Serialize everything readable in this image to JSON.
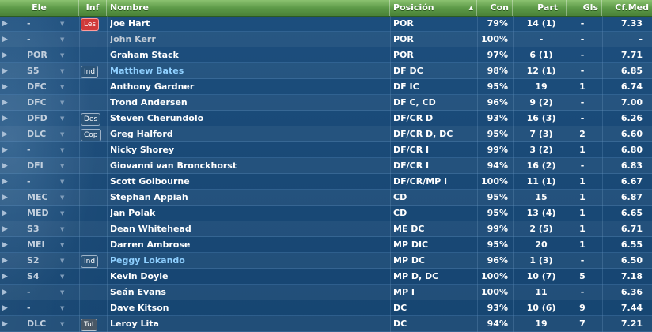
{
  "header": {
    "ele": "Ele",
    "inf": "Inf",
    "nombre": "Nombre",
    "posicion": "Posición",
    "con": "Con",
    "part": "Part",
    "gls": "Gls",
    "cfmed": "Cf.Med"
  },
  "rows": [
    {
      "ele": "-",
      "inf": "Les",
      "name": "Joe Hart",
      "pos": "POR",
      "con": "79%",
      "part": "14 (1)",
      "gls": "-",
      "cfmed": "7.33"
    },
    {
      "ele": "-",
      "inf": "",
      "name": "John Kerr",
      "pos": "POR",
      "con": "100%",
      "part": "-",
      "gls": "-",
      "cfmed": "-"
    },
    {
      "ele": "POR",
      "inf": "",
      "name": "Graham Stack",
      "pos": "POR",
      "con": "97%",
      "part": "6 (1)",
      "gls": "-",
      "cfmed": "7.71"
    },
    {
      "ele": "S5",
      "inf": "Ind",
      "name": "Matthew Bates",
      "pos": "DF DC",
      "con": "98%",
      "part": "12 (1)",
      "gls": "-",
      "cfmed": "6.85"
    },
    {
      "ele": "DFC",
      "inf": "",
      "name": "Anthony Gardner",
      "pos": "DF IC",
      "con": "95%",
      "part": "19",
      "gls": "1",
      "cfmed": "6.74"
    },
    {
      "ele": "DFC",
      "inf": "",
      "name": "Trond Andersen",
      "pos": "DF C, CD",
      "con": "96%",
      "part": "9 (2)",
      "gls": "-",
      "cfmed": "7.00"
    },
    {
      "ele": "DFD",
      "inf": "Des",
      "name": "Steven Cherundolo",
      "pos": "DF/CR D",
      "con": "93%",
      "part": "16 (3)",
      "gls": "-",
      "cfmed": "6.26"
    },
    {
      "ele": "DLC",
      "inf": "Cop",
      "name": "Greg Halford",
      "pos": "DF/CR D, DC",
      "con": "95%",
      "part": "7 (3)",
      "gls": "2",
      "cfmed": "6.60"
    },
    {
      "ele": "-",
      "inf": "",
      "name": "Nicky Shorey",
      "pos": "DF/CR I",
      "con": "99%",
      "part": "3 (2)",
      "gls": "1",
      "cfmed": "6.80"
    },
    {
      "ele": "DFI",
      "inf": "",
      "name": "Giovanni van Bronckhorst",
      "pos": "DF/CR I",
      "con": "94%",
      "part": "16 (2)",
      "gls": "-",
      "cfmed": "6.83"
    },
    {
      "ele": "-",
      "inf": "",
      "name": "Scott Golbourne",
      "pos": "DF/CR/MP I",
      "con": "100%",
      "part": "11 (1)",
      "gls": "1",
      "cfmed": "6.67"
    },
    {
      "ele": "MEC",
      "inf": "",
      "name": "Stephan Appiah",
      "pos": "CD",
      "con": "95%",
      "part": "15",
      "gls": "1",
      "cfmed": "6.87"
    },
    {
      "ele": "MED",
      "inf": "",
      "name": "Jan Polak",
      "pos": "CD",
      "con": "95%",
      "part": "13 (4)",
      "gls": "1",
      "cfmed": "6.65"
    },
    {
      "ele": "S3",
      "inf": "",
      "name": "Dean Whitehead",
      "pos": "ME DC",
      "con": "99%",
      "part": "2 (5)",
      "gls": "1",
      "cfmed": "6.71"
    },
    {
      "ele": "MEI",
      "inf": "",
      "name": "Darren Ambrose",
      "pos": "MP DIC",
      "con": "95%",
      "part": "20",
      "gls": "1",
      "cfmed": "6.55"
    },
    {
      "ele": "S2",
      "inf": "Ind",
      "name": "Peggy Lokando",
      "pos": "MP DC",
      "con": "96%",
      "part": "1 (3)",
      "gls": "-",
      "cfmed": "6.50"
    },
    {
      "ele": "S4",
      "inf": "",
      "name": "Kevin Doyle",
      "pos": "MP D, DC",
      "con": "100%",
      "part": "10 (7)",
      "gls": "5",
      "cfmed": "7.18"
    },
    {
      "ele": "-",
      "inf": "",
      "name": "Seán Evans",
      "pos": "MP I",
      "con": "100%",
      "part": "11",
      "gls": "-",
      "cfmed": "6.36"
    },
    {
      "ele": "-",
      "inf": "",
      "name": "Dave Kitson",
      "pos": "DC",
      "con": "93%",
      "part": "10 (6)",
      "gls": "9",
      "cfmed": "7.44"
    },
    {
      "ele": "DLC",
      "inf": "Tut",
      "name": "Leroy Lita",
      "pos": "DC",
      "con": "94%",
      "part": "19",
      "gls": "7",
      "cfmed": "7.21"
    }
  ],
  "icons": {
    "expand": "triangle-right-icon",
    "dropdown": "chevron-down-icon",
    "sort": "sort-ascending-icon"
  }
}
